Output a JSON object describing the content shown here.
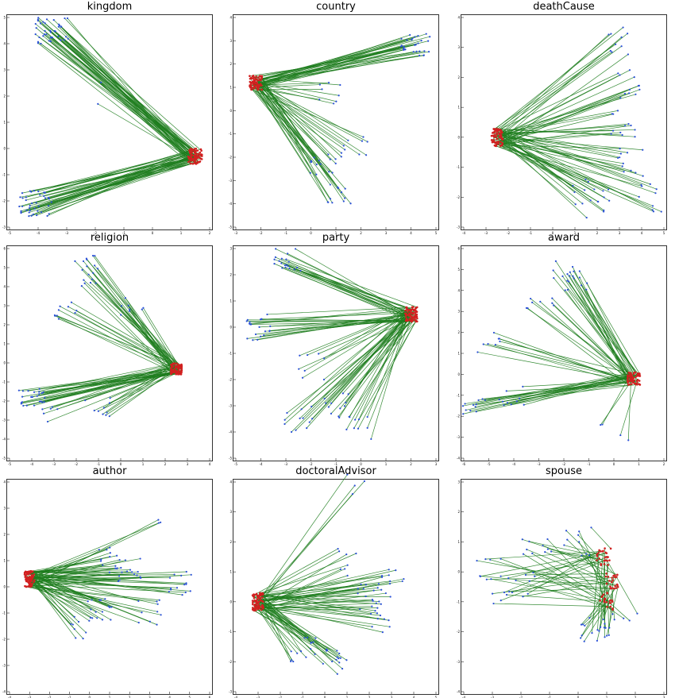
{
  "figure": {
    "panel_titles": [
      "kingdom",
      "country",
      "deathCause",
      "religion",
      "party",
      "award",
      "author",
      "doctoralAdvisor",
      "spouse"
    ]
  },
  "colors": {
    "link": "#1e7d1e",
    "head_point": "#d22020",
    "tail_point": "#2a50d8",
    "frame": "#000000"
  },
  "chart_data": [
    {
      "type": "line",
      "title": "kingdom",
      "xlim": [
        -5,
        2
      ],
      "ylim": [
        -3,
        5
      ],
      "xticks": [
        "-5",
        "-4",
        "-3",
        "-2",
        "-1",
        "0",
        "1",
        "2"
      ],
      "yticks": [
        "-3",
        "-2",
        "-1",
        "0",
        "1",
        "2",
        "3",
        "4",
        "5"
      ],
      "heads": [
        [
          1.5,
          -0.3
        ]
      ],
      "sources": [
        [
          -3.5,
          4.5
        ],
        [
          -4.1,
          -2.1
        ],
        [
          -1.8,
          2.6
        ],
        [
          -1.9,
          1.8
        ]
      ],
      "fan_counts": [
        40,
        40,
        1,
        1
      ]
    },
    {
      "type": "line",
      "title": "country",
      "xlim": [
        -3,
        5
      ],
      "ylim": [
        -5,
        4
      ],
      "xticks": [
        "-3",
        "-2",
        "-1",
        "0",
        "1",
        "2",
        "3",
        "4",
        "5"
      ],
      "yticks": [
        "-5",
        "-4",
        "-3",
        "-2",
        "-1",
        "0",
        "1",
        "2",
        "3",
        "4"
      ],
      "heads": [
        [
          -2.2,
          1.2
        ]
      ],
      "sources": [
        [
          4.2,
          2.8
        ],
        [
          1.8,
          -1.5
        ],
        [
          1.0,
          -3.6
        ],
        [
          0.5,
          -2.3
        ],
        [
          0.8,
          0.8
        ]
      ],
      "fan_counts": [
        30,
        10,
        12,
        15,
        8
      ]
    },
    {
      "type": "line",
      "title": "deathCause",
      "xlim": [
        -4,
        5
      ],
      "ylim": [
        -3,
        4
      ],
      "xticks": [
        "-4",
        "-3",
        "-2",
        "-1",
        "0",
        "1",
        "2",
        "3",
        "4",
        "5"
      ],
      "yticks": [
        "-3",
        "-2",
        "-1",
        "0",
        "1",
        "2",
        "3",
        "4"
      ],
      "heads": [
        [
          -2.5,
          0.0
        ]
      ],
      "sources": [
        [
          3.0,
          3.2
        ],
        [
          3.5,
          1.8
        ],
        [
          3.2,
          0.4
        ],
        [
          3.5,
          -0.8
        ],
        [
          4.3,
          -2.0
        ],
        [
          2.0,
          -2.2
        ],
        [
          1.5,
          -1.8
        ]
      ],
      "fan_counts": [
        10,
        12,
        12,
        12,
        10,
        10,
        8
      ]
    },
    {
      "type": "line",
      "title": "religion",
      "xlim": [
        -5,
        4
      ],
      "ylim": [
        -5,
        6
      ],
      "xticks": [
        "-5",
        "-4",
        "-3",
        "-2",
        "-1",
        "0",
        "1",
        "2",
        "3",
        "4"
      ],
      "yticks": [
        "-5",
        "-4",
        "-3",
        "-2",
        "-1",
        "0",
        "1",
        "2",
        "3",
        "4",
        "5",
        "6"
      ],
      "heads": [
        [
          2.5,
          -0.3
        ]
      ],
      "sources": [
        [
          -4.0,
          -1.8
        ],
        [
          -1.5,
          5.2
        ],
        [
          -2.5,
          2.7
        ],
        [
          -1.2,
          4.5
        ],
        [
          -1.0,
          -2.3
        ],
        [
          -3.0,
          -2.6
        ],
        [
          0.5,
          3.0
        ]
      ],
      "fan_counts": [
        25,
        10,
        10,
        8,
        10,
        6,
        8
      ]
    },
    {
      "type": "line",
      "title": "party",
      "xlim": [
        -5,
        3
      ],
      "ylim": [
        -5,
        3
      ],
      "xticks": [
        "-5",
        "-4",
        "-3",
        "-2",
        "-1",
        "0",
        "1",
        "2",
        "3"
      ],
      "yticks": [
        "-5",
        "-4",
        "-3",
        "-2",
        "-1",
        "0",
        "1",
        "2",
        "3"
      ],
      "heads": [
        [
          2.0,
          0.5
        ]
      ],
      "sources": [
        [
          -3.0,
          2.5
        ],
        [
          -4.0,
          0.0
        ],
        [
          -2.5,
          -3.5
        ],
        [
          -1.0,
          -3.0
        ],
        [
          0.0,
          -3.8
        ],
        [
          -2.0,
          -1.5
        ]
      ],
      "fan_counts": [
        20,
        20,
        12,
        12,
        10,
        8
      ]
    },
    {
      "type": "line",
      "title": "award",
      "xlim": [
        -6,
        2
      ],
      "ylim": [
        -4,
        6
      ],
      "xticks": [
        "-6",
        "-5",
        "-4",
        "-3",
        "-2",
        "-1",
        "0",
        "1",
        "2"
      ],
      "yticks": [
        "-4",
        "-3",
        "-2",
        "-1",
        "0",
        "1",
        "2",
        "3",
        "4",
        "5",
        "6"
      ],
      "heads": [
        [
          0.8,
          -0.2
        ]
      ],
      "sources": [
        [
          -2.0,
          5.0
        ],
        [
          -1.5,
          4.5
        ],
        [
          -5.0,
          1.5
        ],
        [
          -5.5,
          -1.5
        ],
        [
          -3.0,
          3.5
        ],
        [
          0.0,
          -2.8
        ],
        [
          -4.0,
          -1.0
        ]
      ],
      "fan_counts": [
        10,
        10,
        8,
        12,
        8,
        4,
        10
      ]
    },
    {
      "type": "line",
      "title": "author",
      "xlim": [
        -4,
        6
      ],
      "ylim": [
        -4,
        4
      ],
      "xticks": [
        "-4",
        "-3",
        "-2",
        "-1",
        "0",
        "1",
        "2",
        "3",
        "4",
        "5",
        "6"
      ],
      "yticks": [
        "-4",
        "-3",
        "-2",
        "-1",
        "0",
        "1",
        "2",
        "3",
        "4"
      ],
      "heads": [
        [
          -3.0,
          0.3
        ]
      ],
      "sources": [
        [
          3.5,
          2.5
        ],
        [
          4.5,
          0.1
        ],
        [
          3.0,
          -1.0
        ],
        [
          0.5,
          -0.8
        ],
        [
          1.0,
          1.0
        ],
        [
          -0.5,
          -1.5
        ],
        [
          2.0,
          0.6
        ]
      ],
      "fan_counts": [
        3,
        15,
        10,
        15,
        15,
        10,
        15
      ]
    },
    {
      "type": "line",
      "title": "doctoralAdvisor",
      "xlim": [
        -4,
        5
      ],
      "ylim": [
        -3,
        4
      ],
      "xticks": [
        "-4",
        "-3",
        "-2",
        "-1",
        "0",
        "1",
        "2",
        "3",
        "4",
        "5"
      ],
      "yticks": [
        "-3",
        "-2",
        "-1",
        "0",
        "1",
        "2",
        "3",
        "4"
      ],
      "heads": [
        [
          -3.0,
          0.0
        ]
      ],
      "sources": [
        [
          1.5,
          3.8
        ],
        [
          3.0,
          0.6
        ],
        [
          2.5,
          -0.6
        ],
        [
          0.5,
          -2.0
        ],
        [
          1.0,
          1.3
        ],
        [
          -1.0,
          -1.5
        ],
        [
          2.0,
          0.2
        ]
      ],
      "fan_counts": [
        4,
        12,
        12,
        15,
        8,
        15,
        15
      ]
    },
    {
      "type": "line",
      "title": "spouse",
      "xlim": [
        -4,
        3
      ],
      "ylim": [
        -4,
        3
      ],
      "xticks": [
        "-4",
        "-3",
        "-2",
        "-1",
        "0",
        "1",
        "2",
        "3"
      ],
      "yticks": [
        "-4",
        "-3",
        "-2",
        "-1",
        "0",
        "1",
        "2",
        "3"
      ],
      "heads": [
        [
          0.9,
          0.5
        ],
        [
          1.2,
          -0.3
        ],
        [
          1.0,
          -1.0
        ]
      ],
      "sources": [
        [
          -3.0,
          0.2
        ],
        [
          -1.5,
          0.9
        ],
        [
          0.5,
          -2.0
        ],
        [
          -2.0,
          -0.5
        ],
        [
          0.0,
          1.0
        ],
        [
          -2.5,
          -1.0
        ],
        [
          1.5,
          -1.8
        ]
      ],
      "fan_counts": [
        10,
        10,
        15,
        8,
        10,
        6,
        10
      ]
    }
  ]
}
